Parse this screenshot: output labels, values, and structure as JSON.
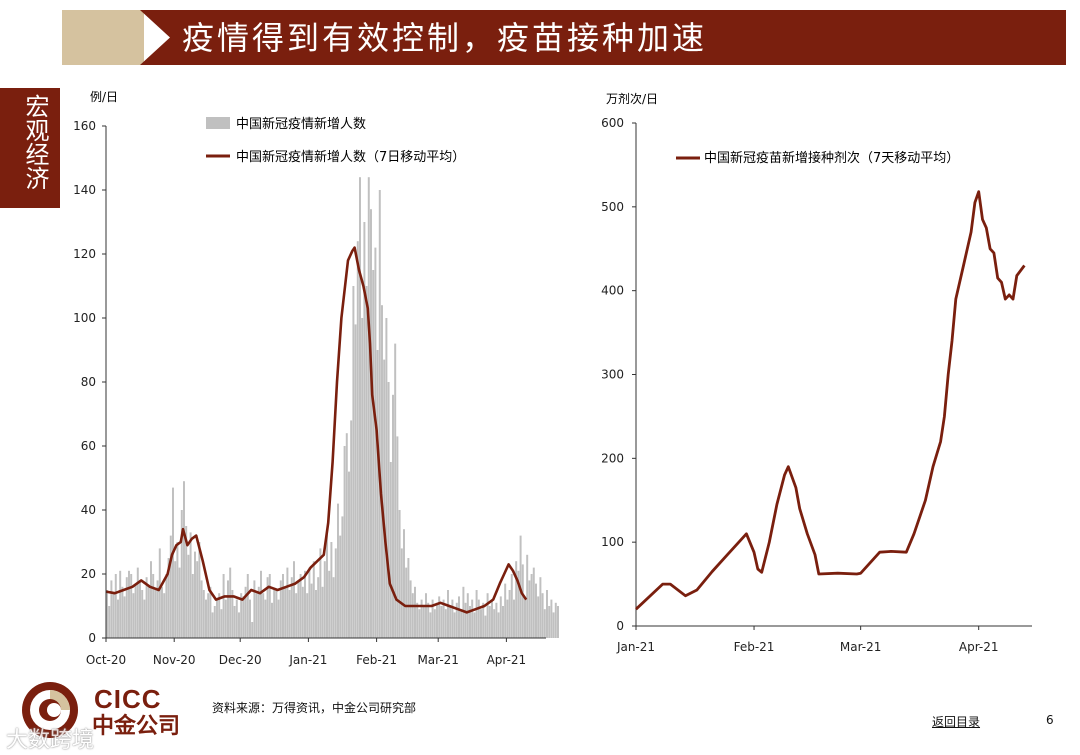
{
  "header": {
    "title": "疫情得到有效控制，疫苗接种加速"
  },
  "side_tab": {
    "label": "宏观经济"
  },
  "footer": {
    "source": "资料来源：万得资讯，中金公司研究部",
    "back_link": "返回目录",
    "page_number": "6",
    "logo_text_en": "CICC",
    "logo_text_cn": "中金公司",
    "watermark": "大数跨境"
  },
  "colors": {
    "brand": "#7a1f0e",
    "banner_tan": "#d5c29f",
    "bar": "#c0c0c0",
    "line": "#7a1f0e"
  },
  "chart_data": [
    {
      "type": "bar",
      "unit_label": "例/日",
      "ylim": [
        0,
        160
      ],
      "yticks": [
        0,
        20,
        40,
        60,
        80,
        100,
        120,
        140,
        160
      ],
      "xlim": [
        0,
        200
      ],
      "x_ticks": [
        {
          "label": "Oct-20",
          "at": 0
        },
        {
          "label": "Nov-20",
          "at": 31
        },
        {
          "label": "Dec-20",
          "at": 61
        },
        {
          "label": "Jan-21",
          "at": 92
        },
        {
          "label": "Feb-21",
          "at": 123
        },
        {
          "label": "Mar-21",
          "at": 151
        },
        {
          "label": "Apr-21",
          "at": 182
        }
      ],
      "legend": [
        "中国新冠疫情新增人数",
        "中国新冠疫情新增人数（7日移动平均）"
      ],
      "series": [
        {
          "name": "中国新冠疫情新增人数",
          "kind": "bar",
          "values": [
            15,
            10,
            18,
            14,
            20,
            12,
            21,
            16,
            13,
            19,
            21,
            20,
            14,
            17,
            22,
            18,
            15,
            12,
            19,
            16,
            24,
            20,
            15,
            18,
            28,
            16,
            14,
            20,
            25,
            32,
            47,
            24,
            30,
            22,
            40,
            49,
            35,
            26,
            33,
            20,
            27,
            24,
            30,
            18,
            15,
            12,
            14,
            16,
            8,
            10,
            12,
            14,
            9,
            20,
            12,
            18,
            22,
            15,
            10,
            12,
            8,
            14,
            13,
            16,
            20,
            12,
            5,
            18,
            14,
            16,
            21,
            14,
            12,
            19,
            20,
            11,
            15,
            15,
            12,
            18,
            20,
            16,
            22,
            15,
            19,
            24,
            14,
            18,
            20,
            16,
            21,
            14,
            22,
            17,
            24,
            15,
            19,
            28,
            16,
            24,
            33,
            21,
            30,
            19,
            28,
            42,
            32,
            38,
            60,
            64,
            52,
            68,
            110,
            98,
            124,
            144,
            100,
            130,
            110,
            144,
            134,
            115,
            122,
            90,
            140,
            104,
            87,
            100,
            80,
            55,
            76,
            92,
            63,
            40,
            28,
            34,
            22,
            25,
            18,
            14,
            16,
            11,
            9,
            12,
            10,
            14,
            11,
            8,
            12,
            9,
            11,
            13,
            10,
            12,
            9,
            15,
            10,
            12,
            8,
            11,
            13,
            9,
            16,
            11,
            14,
            10,
            12,
            8,
            15,
            12,
            9,
            11,
            7,
            14,
            10,
            12,
            9,
            11,
            8,
            13,
            10,
            17,
            12,
            15,
            20,
            12,
            24,
            21,
            32,
            23,
            12,
            26,
            18,
            20,
            22,
            17,
            13,
            19,
            14,
            9,
            15,
            10,
            12,
            8,
            11,
            10
          ]
        },
        {
          "name": "中国新冠疫情新增人数（7日移动平均）",
          "kind": "line",
          "values": [
            [
              0,
              14.5
            ],
            [
              4,
              14
            ],
            [
              8,
              15
            ],
            [
              12,
              16
            ],
            [
              16,
              18
            ],
            [
              20,
              16
            ],
            [
              24,
              15
            ],
            [
              28,
              20
            ],
            [
              30,
              26
            ],
            [
              32,
              29
            ],
            [
              34,
              30
            ],
            [
              35,
              34
            ],
            [
              37,
              29
            ],
            [
              39,
              31
            ],
            [
              41,
              32
            ],
            [
              44,
              24
            ],
            [
              47,
              15
            ],
            [
              50,
              12
            ],
            [
              54,
              13
            ],
            [
              58,
              13
            ],
            [
              62,
              12
            ],
            [
              66,
              15
            ],
            [
              70,
              14
            ],
            [
              74,
              16
            ],
            [
              78,
              15
            ],
            [
              82,
              16
            ],
            [
              86,
              17
            ],
            [
              90,
              19
            ],
            [
              93,
              22
            ],
            [
              96,
              24
            ],
            [
              99,
              26
            ],
            [
              101,
              36
            ],
            [
              103,
              55
            ],
            [
              105,
              80
            ],
            [
              107,
              100
            ],
            [
              109,
              112
            ],
            [
              110,
              118
            ],
            [
              112,
              121
            ],
            [
              113,
              122
            ],
            [
              115,
              115
            ],
            [
              117,
              110
            ],
            [
              119,
              103
            ],
            [
              120,
              92
            ],
            [
              121,
              76
            ],
            [
              123,
              65
            ],
            [
              125,
              45
            ],
            [
              127,
              30
            ],
            [
              129,
              17
            ],
            [
              132,
              12
            ],
            [
              136,
              10
            ],
            [
              140,
              10
            ],
            [
              144,
              10
            ],
            [
              148,
              10
            ],
            [
              152,
              11
            ],
            [
              156,
              10
            ],
            [
              160,
              9
            ],
            [
              164,
              8
            ],
            [
              168,
              9
            ],
            [
              172,
              10
            ],
            [
              176,
              12
            ],
            [
              179,
              17
            ],
            [
              181,
              20
            ],
            [
              183,
              23
            ],
            [
              185,
              21
            ],
            [
              187,
              18
            ],
            [
              189,
              14
            ],
            [
              191,
              12
            ]
          ]
        }
      ]
    },
    {
      "type": "line",
      "unit_label": "万剂次/日",
      "ylim": [
        0,
        600
      ],
      "yticks": [
        0,
        100,
        200,
        300,
        400,
        500,
        600
      ],
      "xlim": [
        0,
        104
      ],
      "x_ticks": [
        {
          "label": "Jan-21",
          "at": 0
        },
        {
          "label": "Feb-21",
          "at": 31
        },
        {
          "label": "Mar-21",
          "at": 59
        },
        {
          "label": "Apr-21",
          "at": 90
        }
      ],
      "legend": [
        "中国新冠疫苗新增接种剂次（7天移动平均）"
      ],
      "series": [
        {
          "name": "中国新冠疫苗新增接种剂次（7天移动平均）",
          "kind": "line",
          "points": [
            [
              0,
              20
            ],
            [
              7,
              50
            ],
            [
              9,
              50
            ],
            [
              13,
              36
            ],
            [
              16,
              43
            ],
            [
              20,
              65
            ],
            [
              24,
              85
            ],
            [
              27,
              100
            ],
            [
              29,
              110
            ],
            [
              31,
              88
            ],
            [
              32,
              68
            ],
            [
              33,
              64
            ],
            [
              35,
              100
            ],
            [
              37,
              145
            ],
            [
              39,
              180
            ],
            [
              40,
              190
            ],
            [
              42,
              165
            ],
            [
              43,
              140
            ],
            [
              45,
              110
            ],
            [
              47,
              85
            ],
            [
              48,
              62
            ],
            [
              53,
              63
            ],
            [
              58,
              62
            ],
            [
              59,
              63
            ],
            [
              64,
              88
            ],
            [
              67,
              89
            ],
            [
              71,
              88
            ],
            [
              73,
              110
            ],
            [
              76,
              150
            ],
            [
              78,
              190
            ],
            [
              79,
              205
            ],
            [
              80,
              220
            ],
            [
              81,
              250
            ],
            [
              82,
              300
            ],
            [
              83,
              340
            ],
            [
              84,
              390
            ],
            [
              86,
              430
            ],
            [
              88,
              470
            ],
            [
              89,
              505
            ],
            [
              90,
              518
            ],
            [
              91,
              485
            ],
            [
              92,
              475
            ],
            [
              93,
              450
            ],
            [
              94,
              445
            ],
            [
              95,
              415
            ],
            [
              96,
              410
            ],
            [
              97,
              390
            ],
            [
              98,
              395
            ],
            [
              99,
              390
            ],
            [
              100,
              418
            ],
            [
              102,
              430
            ]
          ]
        }
      ]
    }
  ]
}
